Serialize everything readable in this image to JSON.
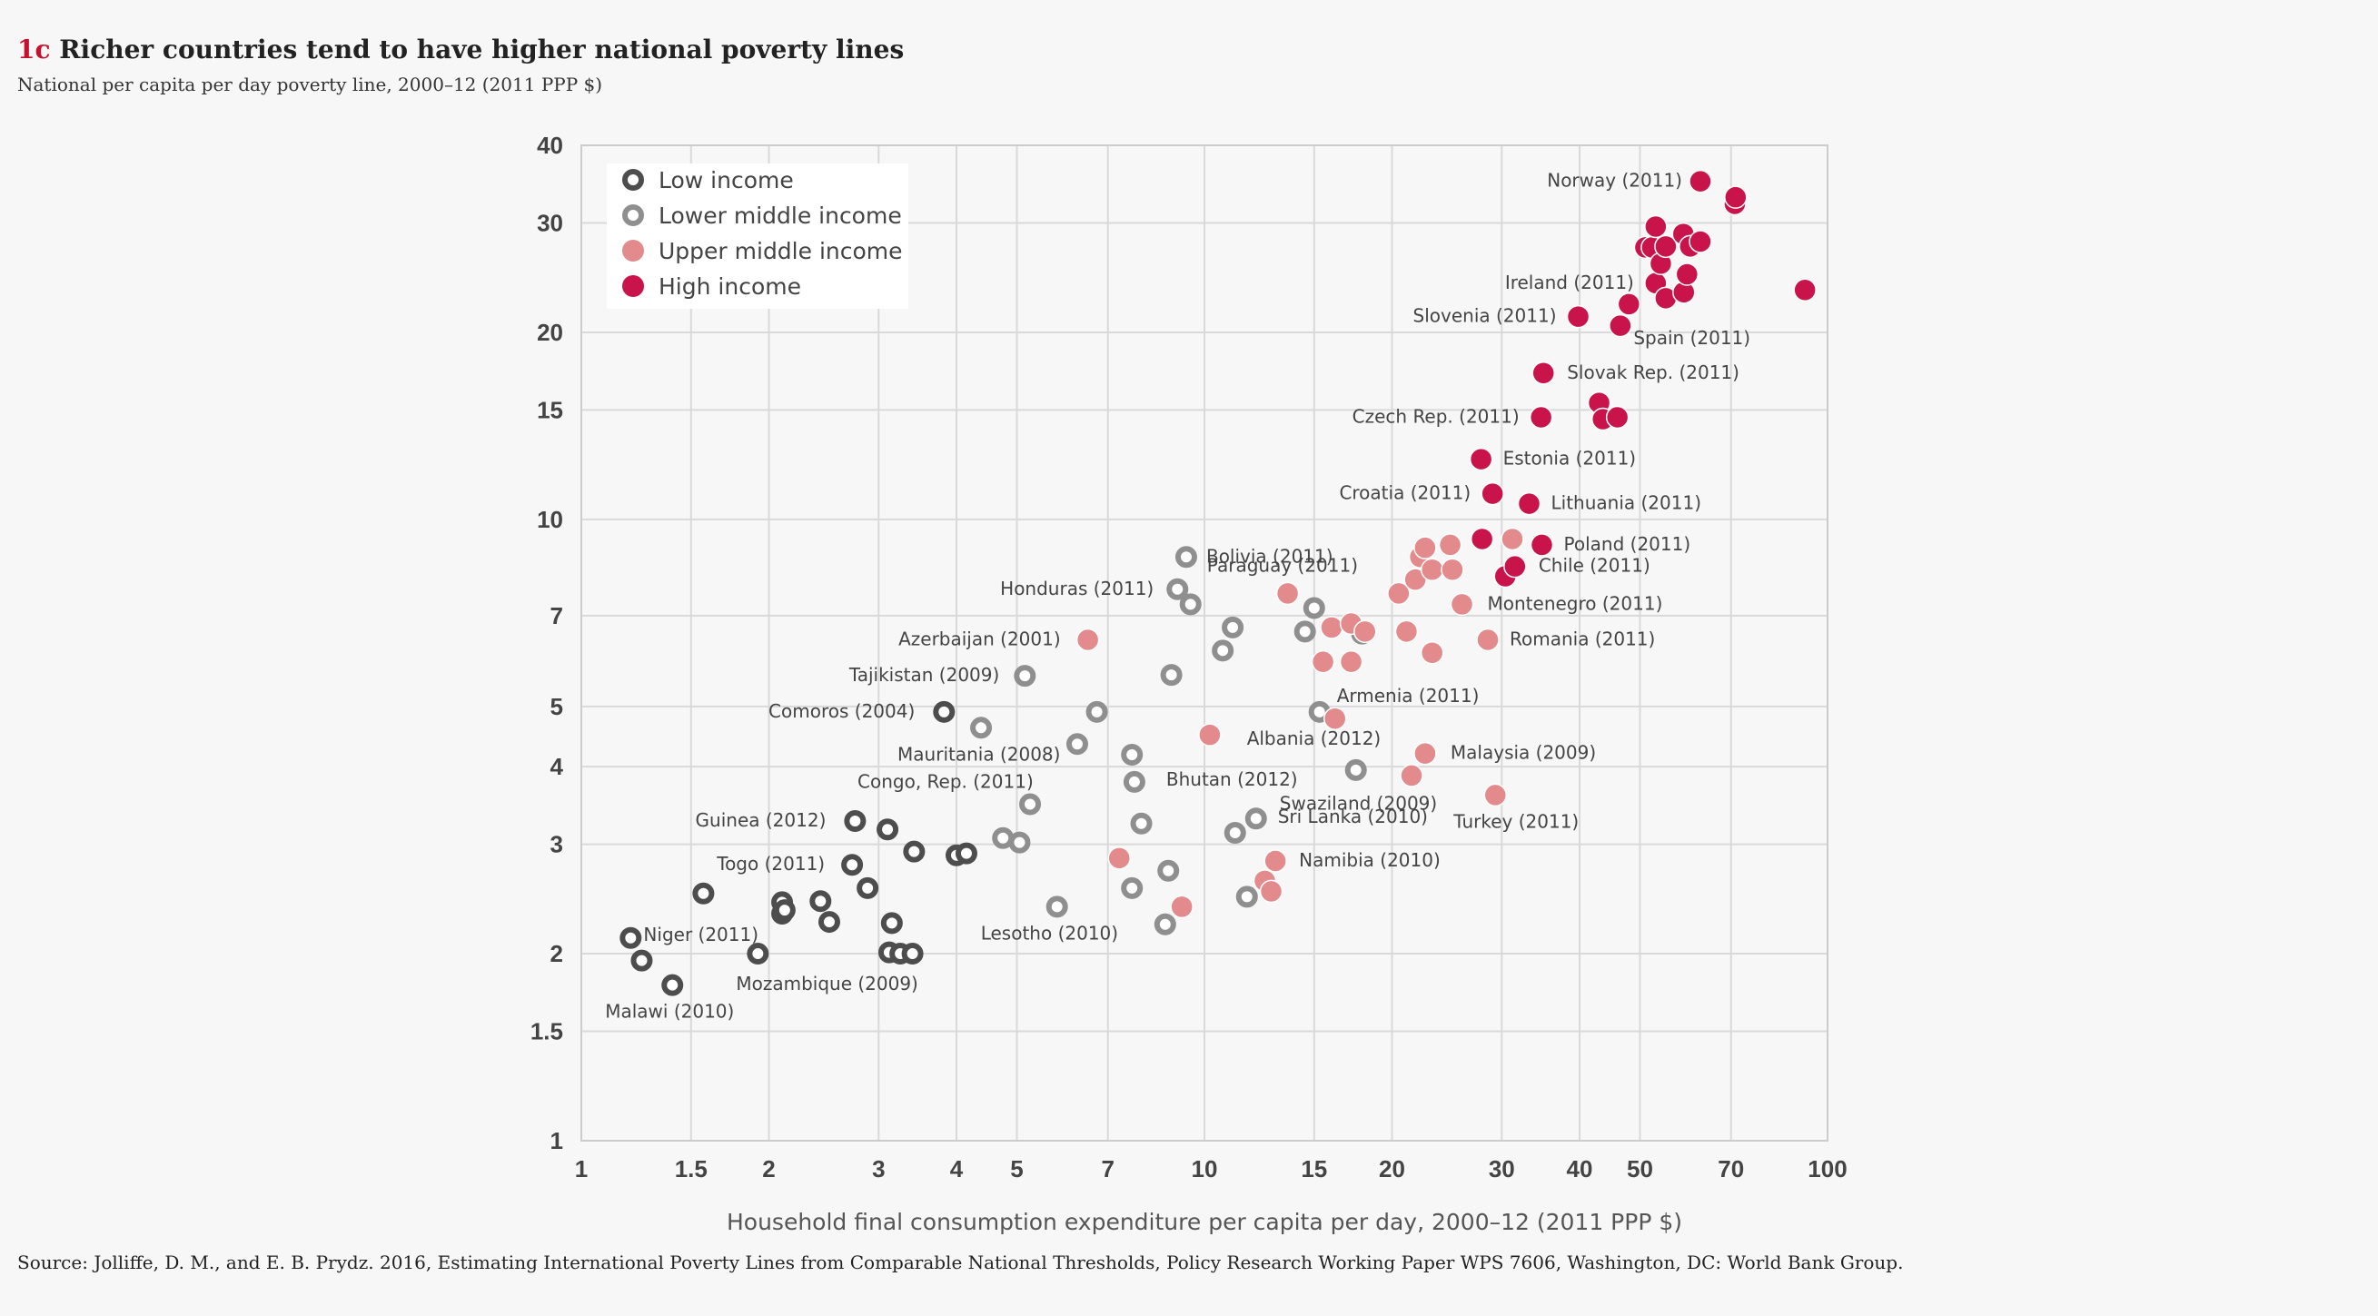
{
  "header": {
    "tag": "1c",
    "title": "Richer countries tend to have higher national poverty lines",
    "subtitle": "National per capita per day poverty line, 2000–12 (2011 PPP $)"
  },
  "source": "Source: Jolliffe, D. M., and E. B. Prydz. 2016, Estimating International Poverty Lines from Comparable National Thresholds, Policy Research Working Paper WPS 7606, Washington, DC: World Bank Group.",
  "chart_data": {
    "type": "scatter",
    "xscale": "log",
    "yscale": "log",
    "xlim": [
      1,
      100
    ],
    "ylim": [
      1,
      40
    ],
    "grid": true,
    "xlabel": "Household final consumption expenditure per capita per day, 2000–12 (2011 PPP $)",
    "ylabel": "",
    "xticks": [
      1,
      1.5,
      2,
      3,
      4,
      5,
      7,
      10,
      15,
      20,
      30,
      40,
      50,
      70,
      100
    ],
    "xtick_labels": [
      "1",
      "1.5",
      "2",
      "3",
      "4",
      "5",
      "7",
      "10",
      "15",
      "20",
      "30",
      "40",
      "50",
      "70",
      "100"
    ],
    "yticks": [
      1,
      1.5,
      2,
      3,
      4,
      5,
      7,
      10,
      15,
      20,
      30,
      40
    ],
    "ytick_labels": [
      "1",
      "1.5",
      "2",
      "3",
      "4",
      "5",
      "7",
      "10",
      "15",
      "20",
      "30",
      "40"
    ],
    "legend_position": "top-left",
    "colors": {
      "low": "#4d4d4d",
      "lower_middle": "#8f8f8f",
      "upper_middle": "#e28a8c",
      "high": "#c8144a",
      "grid": "#d9d9d9"
    },
    "series": [
      {
        "name": "Low income",
        "key": "low",
        "marker": "ring",
        "points": [
          {
            "x": 1.2,
            "y": 2.12,
            "label": ""
          },
          {
            "x": 1.25,
            "y": 1.95,
            "label": ""
          },
          {
            "x": 1.4,
            "y": 1.78,
            "label": "Malawi (2010)"
          },
          {
            "x": 1.57,
            "y": 2.5,
            "label": ""
          },
          {
            "x": 1.92,
            "y": 2.0,
            "label": "Mozambique (2009)"
          },
          {
            "x": 2.1,
            "y": 2.42,
            "label": ""
          },
          {
            "x": 2.1,
            "y": 2.32,
            "label": "Niger (2011)"
          },
          {
            "x": 2.12,
            "y": 2.35,
            "label": ""
          },
          {
            "x": 2.42,
            "y": 2.43,
            "label": ""
          },
          {
            "x": 2.5,
            "y": 2.25,
            "label": ""
          },
          {
            "x": 2.72,
            "y": 2.78,
            "label": "Togo (2011)"
          },
          {
            "x": 2.75,
            "y": 3.27,
            "label": "Guinea (2012)"
          },
          {
            "x": 2.88,
            "y": 2.55,
            "label": ""
          },
          {
            "x": 3.1,
            "y": 3.17,
            "label": ""
          },
          {
            "x": 3.12,
            "y": 2.01,
            "label": ""
          },
          {
            "x": 3.15,
            "y": 2.24,
            "label": ""
          },
          {
            "x": 3.25,
            "y": 2.0,
            "label": ""
          },
          {
            "x": 3.4,
            "y": 2.0,
            "label": ""
          },
          {
            "x": 3.42,
            "y": 2.92,
            "label": ""
          },
          {
            "x": 3.82,
            "y": 4.9,
            "label": "Comoros (2004)"
          },
          {
            "x": 4.0,
            "y": 2.88,
            "label": ""
          },
          {
            "x": 4.15,
            "y": 2.9,
            "label": ""
          }
        ]
      },
      {
        "name": "Lower middle income",
        "key": "lower_middle",
        "marker": "ring",
        "points": [
          {
            "x": 4.38,
            "y": 4.62,
            "label": "Mauritania (2008)"
          },
          {
            "x": 4.75,
            "y": 3.07,
            "label": ""
          },
          {
            "x": 5.05,
            "y": 3.02,
            "label": ""
          },
          {
            "x": 5.25,
            "y": 3.48,
            "label": "Congo, Rep. (2011)"
          },
          {
            "x": 5.15,
            "y": 5.6,
            "label": "Tajikistan (2009)"
          },
          {
            "x": 5.8,
            "y": 2.38,
            "label": "Lesotho (2010)"
          },
          {
            "x": 6.25,
            "y": 4.35,
            "label": ""
          },
          {
            "x": 6.72,
            "y": 4.9,
            "label": ""
          },
          {
            "x": 7.65,
            "y": 4.18,
            "label": ""
          },
          {
            "x": 7.72,
            "y": 3.78,
            "label": ""
          },
          {
            "x": 7.92,
            "y": 3.24,
            "label": ""
          },
          {
            "x": 7.65,
            "y": 2.55,
            "label": ""
          },
          {
            "x": 8.75,
            "y": 2.72,
            "label": ""
          },
          {
            "x": 8.65,
            "y": 2.23,
            "label": ""
          },
          {
            "x": 8.85,
            "y": 5.62,
            "label": ""
          },
          {
            "x": 9.05,
            "y": 7.72,
            "label": "Honduras (2011)"
          },
          {
            "x": 9.35,
            "y": 8.7,
            "label": "Bolivia (2011)"
          },
          {
            "x": 9.5,
            "y": 7.3,
            "label": ""
          },
          {
            "x": 10.7,
            "y": 6.15,
            "label": ""
          },
          {
            "x": 11.1,
            "y": 6.7,
            "label": ""
          },
          {
            "x": 11.2,
            "y": 3.13,
            "label": ""
          },
          {
            "x": 11.7,
            "y": 2.47,
            "label": ""
          },
          {
            "x": 12.1,
            "y": 3.3,
            "label": "Swaziland (2009)"
          },
          {
            "x": 14.5,
            "y": 6.6,
            "label": ""
          },
          {
            "x": 15.0,
            "y": 7.2,
            "label": "Paraguay (2011)"
          },
          {
            "x": 15.3,
            "y": 4.9,
            "label": "Albania (2012)"
          },
          {
            "x": 17.5,
            "y": 3.95,
            "label": "Sri Lanka (2010)"
          },
          {
            "x": 17.9,
            "y": 6.55,
            "label": ""
          }
        ]
      },
      {
        "name": "Upper middle income",
        "key": "upper_middle",
        "marker": "dot",
        "points": [
          {
            "x": 6.5,
            "y": 6.4,
            "label": "Azerbaijan (2001)"
          },
          {
            "x": 7.3,
            "y": 2.85,
            "label": ""
          },
          {
            "x": 9.2,
            "y": 2.38,
            "label": ""
          },
          {
            "x": 10.2,
            "y": 4.5,
            "label": "Bhutan (2012)"
          },
          {
            "x": 12.5,
            "y": 2.62,
            "label": ""
          },
          {
            "x": 12.8,
            "y": 2.52,
            "label": ""
          },
          {
            "x": 13.0,
            "y": 2.82,
            "label": "Namibia (2010)"
          },
          {
            "x": 13.6,
            "y": 7.6,
            "label": ""
          },
          {
            "x": 15.5,
            "y": 5.9,
            "label": ""
          },
          {
            "x": 16.0,
            "y": 6.7,
            "label": ""
          },
          {
            "x": 16.2,
            "y": 4.78,
            "label": "Armenia (2011)"
          },
          {
            "x": 17.2,
            "y": 5.9,
            "label": ""
          },
          {
            "x": 17.2,
            "y": 6.8,
            "label": ""
          },
          {
            "x": 18.1,
            "y": 6.6,
            "label": ""
          },
          {
            "x": 20.5,
            "y": 7.6,
            "label": ""
          },
          {
            "x": 21.1,
            "y": 6.6,
            "label": ""
          },
          {
            "x": 21.5,
            "y": 3.87,
            "label": ""
          },
          {
            "x": 21.8,
            "y": 8.0,
            "label": ""
          },
          {
            "x": 22.2,
            "y": 8.7,
            "label": ""
          },
          {
            "x": 22.6,
            "y": 9.0,
            "label": ""
          },
          {
            "x": 22.6,
            "y": 4.2,
            "label": "Malaysia (2009)"
          },
          {
            "x": 23.2,
            "y": 8.3,
            "label": ""
          },
          {
            "x": 23.2,
            "y": 6.1,
            "label": ""
          },
          {
            "x": 24.8,
            "y": 9.1,
            "label": ""
          },
          {
            "x": 25.0,
            "y": 8.3,
            "label": ""
          },
          {
            "x": 25.9,
            "y": 7.3,
            "label": "Montenegro (2011)"
          },
          {
            "x": 28.5,
            "y": 6.4,
            "label": "Romania (2011)"
          },
          {
            "x": 29.3,
            "y": 3.6,
            "label": "Turkey (2011)"
          },
          {
            "x": 31.2,
            "y": 9.3,
            "label": ""
          }
        ]
      },
      {
        "name": "High income",
        "key": "high",
        "marker": "dot",
        "points": [
          {
            "x": 27.8,
            "y": 12.5,
            "label": "Estonia (2011)"
          },
          {
            "x": 27.9,
            "y": 9.3,
            "label": ""
          },
          {
            "x": 29.0,
            "y": 11.0,
            "label": "Croatia (2011)"
          },
          {
            "x": 30.4,
            "y": 8.1,
            "label": ""
          },
          {
            "x": 31.5,
            "y": 8.4,
            "label": "Chile (2011)"
          },
          {
            "x": 33.2,
            "y": 10.6,
            "label": "Lithuania (2011)"
          },
          {
            "x": 34.8,
            "y": 9.1,
            "label": "Poland (2011)"
          },
          {
            "x": 34.7,
            "y": 14.6,
            "label": "Czech Rep. (2011)"
          },
          {
            "x": 35.0,
            "y": 17.2,
            "label": "Slovak Rep. (2011)"
          },
          {
            "x": 39.8,
            "y": 21.2,
            "label": "Slovenia (2011)"
          },
          {
            "x": 43.0,
            "y": 15.4,
            "label": ""
          },
          {
            "x": 43.6,
            "y": 14.5,
            "label": ""
          },
          {
            "x": 46.0,
            "y": 14.6,
            "label": ""
          },
          {
            "x": 46.5,
            "y": 20.5,
            "label": ""
          },
          {
            "x": 48.0,
            "y": 22.2,
            "label": "Spain (2011)"
          },
          {
            "x": 51.0,
            "y": 27.4,
            "label": ""
          },
          {
            "x": 52.3,
            "y": 27.4,
            "label": ""
          },
          {
            "x": 53.0,
            "y": 24.0,
            "label": "Ireland (2011)"
          },
          {
            "x": 53.0,
            "y": 29.6,
            "label": ""
          },
          {
            "x": 54.0,
            "y": 25.8,
            "label": ""
          },
          {
            "x": 55.0,
            "y": 22.7,
            "label": ""
          },
          {
            "x": 55.0,
            "y": 27.5,
            "label": ""
          },
          {
            "x": 58.7,
            "y": 28.8,
            "label": ""
          },
          {
            "x": 58.8,
            "y": 23.2,
            "label": ""
          },
          {
            "x": 59.5,
            "y": 24.8,
            "label": ""
          },
          {
            "x": 60.2,
            "y": 27.5,
            "label": ""
          },
          {
            "x": 62.5,
            "y": 28.0,
            "label": ""
          },
          {
            "x": 62.5,
            "y": 35.0,
            "label": "Norway (2011)"
          },
          {
            "x": 71.0,
            "y": 32.2,
            "label": ""
          },
          {
            "x": 71.2,
            "y": 33.0,
            "label": ""
          },
          {
            "x": 92.0,
            "y": 23.4,
            "label": ""
          }
        ]
      }
    ]
  }
}
